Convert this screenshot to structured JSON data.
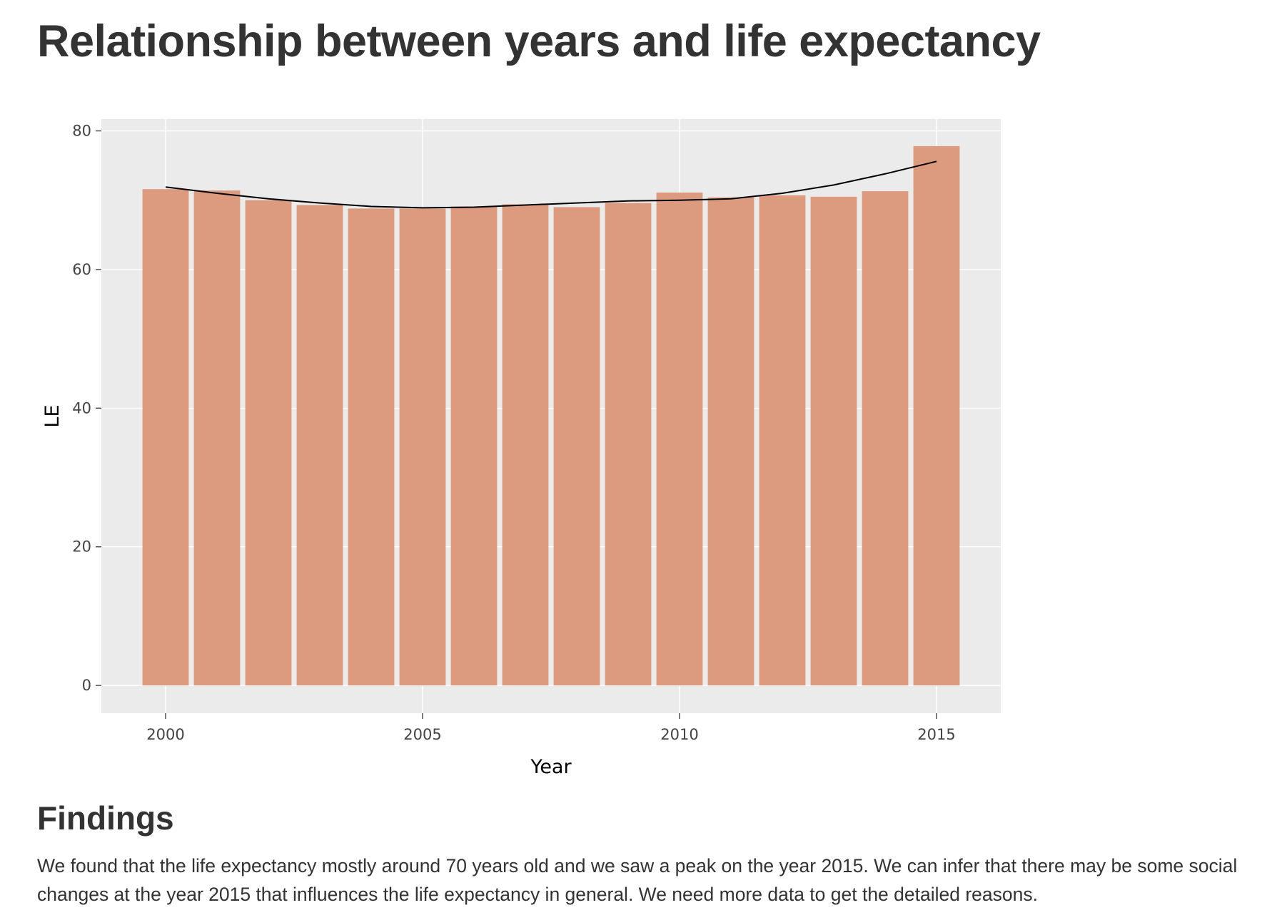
{
  "page": {
    "title": "Relationship between years and life expectancy"
  },
  "findings": {
    "heading": "Findings",
    "text": "We found that the life expectancy mostly around 70 years old and we saw a peak on the year 2015. We can infer that there may be some social changes at the year 2015 that influences the life expectancy in general. We need more data to get the detailed reasons."
  },
  "colors": {
    "bar": "#dc9a7e",
    "panel": "#ebebeb",
    "grid": "#ffffff",
    "trend": "#000000"
  },
  "chart_data": {
    "type": "bar",
    "title": "",
    "xlabel": "Year",
    "ylabel": "LE",
    "x": [
      2000,
      2001,
      2002,
      2003,
      2004,
      2005,
      2006,
      2007,
      2008,
      2009,
      2010,
      2011,
      2012,
      2013,
      2014,
      2015
    ],
    "values": [
      71.6,
      71.4,
      70.0,
      69.3,
      68.8,
      68.8,
      69.1,
      69.4,
      69.0,
      69.6,
      71.1,
      70.4,
      70.7,
      70.5,
      71.3,
      77.8
    ],
    "trend_line": {
      "x": [
        2000,
        2001,
        2002,
        2003,
        2004,
        2005,
        2006,
        2007,
        2008,
        2009,
        2010,
        2011,
        2012,
        2013,
        2014,
        2015
      ],
      "y": [
        71.9,
        71.0,
        70.2,
        69.6,
        69.1,
        68.9,
        69.0,
        69.3,
        69.6,
        69.9,
        70.0,
        70.2,
        71.0,
        72.2,
        73.8,
        75.6
      ]
    },
    "xlim": [
      1998.75,
      2016.25
    ],
    "ylim": [
      -4,
      81.7
    ],
    "x_ticks": [
      2000,
      2005,
      2010,
      2015
    ],
    "y_ticks": [
      0,
      20,
      40,
      60,
      80
    ],
    "grid": true,
    "legend": "none"
  }
}
